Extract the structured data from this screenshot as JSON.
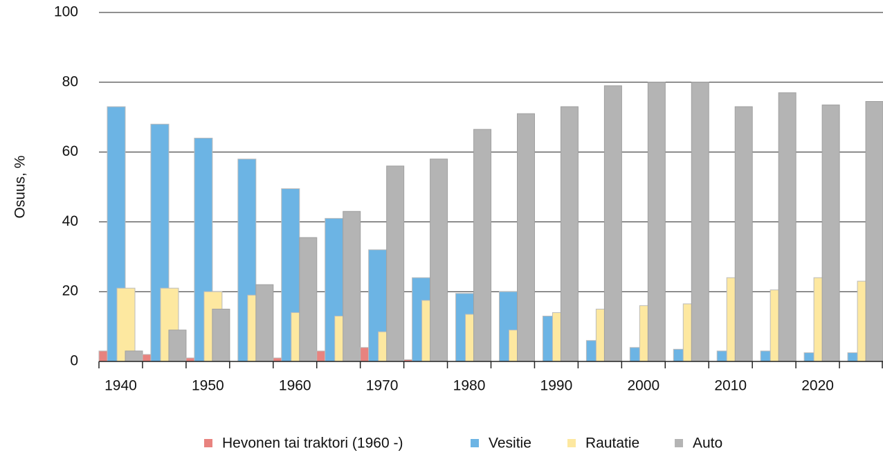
{
  "chart_data": {
    "type": "bar",
    "y_label": "Osuus, %",
    "categories": [
      "1940",
      null,
      "1950",
      null,
      "1960",
      null,
      "1970",
      null,
      "1980",
      null,
      "1990",
      null,
      "2000",
      null,
      "2010",
      null,
      "2020",
      null
    ],
    "series": [
      {
        "name": "Hevonen tai traktori (1960 -)",
        "color": "#e8837f",
        "values": [
          3,
          2,
          1,
          0,
          1,
          3,
          4,
          0.5,
          0,
          0,
          0,
          0,
          0,
          0,
          0,
          0,
          0,
          0
        ]
      },
      {
        "name": "Vesitie",
        "color": "#6cb4e4",
        "values": [
          73,
          68,
          64,
          58,
          49.5,
          41,
          32,
          24,
          19.5,
          20,
          13,
          6,
          4,
          3.5,
          3,
          3,
          2.5,
          2.5
        ]
      },
      {
        "name": "Rautatie",
        "color": "#fde8a0",
        "values": [
          21,
          21,
          20,
          19,
          14,
          13,
          8.5,
          17.5,
          13.5,
          9,
          14,
          15,
          16,
          16.5,
          24,
          20.5,
          24,
          23
        ]
      },
      {
        "name": "Auto",
        "color": "#b4b4b4",
        "values": [
          3,
          9,
          15,
          22,
          35.5,
          43,
          56,
          58,
          66.5,
          71,
          73,
          79,
          80,
          80,
          73,
          77,
          73.5,
          74.5
        ]
      }
    ],
    "ylim": [
      0,
      100
    ],
    "yticks": [
      0,
      20,
      40,
      60,
      80,
      100
    ],
    "grid": true,
    "legend": "bottom"
  }
}
